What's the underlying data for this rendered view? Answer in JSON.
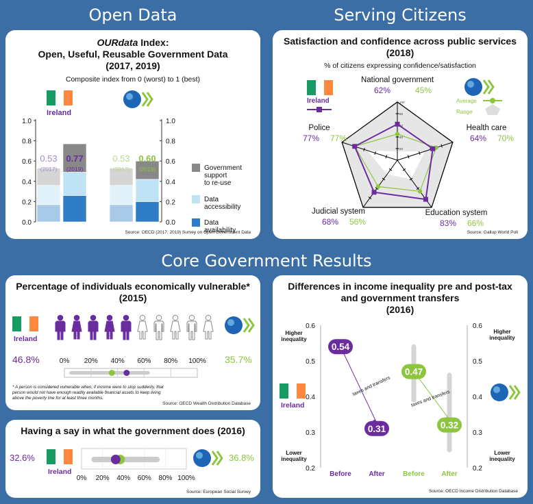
{
  "sections": {
    "open_data": "Open Data",
    "serving_citizens": "Serving Citizens",
    "core_gov": "Core Government Results"
  },
  "colors": {
    "background": "#3a6ea5",
    "purple": "#6a2c9f",
    "green": "#8cc63f",
    "flag_green": "#169b62",
    "flag_white": "#ffffff",
    "flag_orange": "#ff883e",
    "gray_dark": "#888888",
    "light_blue": "#bfe3f5",
    "blue": "#2f7cc7"
  },
  "country_label": "Ireland",
  "open_data": {
    "title_em": "OURdata",
    "title_rest": " Index:",
    "title_line2": "Open, Useful, Reusable Government Data",
    "title_line3": "(2017, 2019)",
    "subtitle": "Composite index from 0 (worst) to 1 (best)",
    "source": "Source: OECD (2017, 2019) Survey on Open Government Data"
  },
  "satisfaction": {
    "title_line1": "Satisfaction and confidence across public services",
    "title_line2": "(2018)",
    "subtitle": "% of citizens expressing confidence/satisfaction",
    "legend_average": "Average",
    "legend_range": "Range",
    "source": "Source: Gallup World Poll"
  },
  "vulnerable": {
    "title_line1": "Percentage of individuals economically vulnerable*",
    "title_line2": "(2015)",
    "note": "* A person is considered vulnerable when, if income were to stop suddenly, that person would not have enough readily available financial assets to keep living above the poverty line for at least three months.",
    "source": "Source: OECD Wealth Distribution Database"
  },
  "say": {
    "title": "Having a say in what the government does (2016)",
    "source": "Source: European Social Survey"
  },
  "inequality": {
    "title_line1": "Differences in income inequality pre and post-tax",
    "title_line2": "and government transfers",
    "title_line3": "(2016)",
    "higher": "Higher inequality",
    "lower": "Lower inequality",
    "arrow_label": "taxes and transfers",
    "source": "Source: OECD Income Distribution Database"
  },
  "chart_data": [
    {
      "type": "bar",
      "id": "ourdata",
      "stacked": true,
      "ylim": [
        0,
        1.0
      ],
      "yticks": [
        "0.0",
        "0.2",
        "0.4",
        "0.6",
        "0.8",
        "1.0"
      ],
      "categories": [
        "2017",
        "2019"
      ],
      "groups": [
        {
          "name": "Ireland",
          "totals_label": [
            "0.53",
            "0.77"
          ],
          "year_label": [
            "(2017)",
            "(2019)"
          ],
          "series": {
            "Data availability": [
              0.17,
              0.26
            ],
            "Data accessibility": [
              0.19,
              0.23
            ],
            "Government support to re-use": [
              0.17,
              0.28
            ]
          }
        },
        {
          "name": "OECD",
          "totals_label": [
            "0.53",
            "0.60"
          ],
          "year_label": [
            "(2017)",
            "(2019)"
          ],
          "series": {
            "Data availability": [
              0.17,
              0.2
            ],
            "Data accessibility": [
              0.19,
              0.22
            ],
            "Government support to re-use": [
              0.17,
              0.18
            ]
          }
        }
      ],
      "legend": [
        "Government support to re-use",
        "Data accessibility",
        "Data availability"
      ]
    },
    {
      "type": "radar",
      "id": "services",
      "axes": [
        "National government",
        "Health care",
        "Education system",
        "Judicial system",
        "Police"
      ],
      "rticks": [
        "20",
        "40",
        "60",
        "80",
        "100"
      ],
      "series": [
        {
          "name": "Ireland",
          "values": [
            62,
            64,
            83,
            68,
            77
          ],
          "labels": [
            "62%",
            "64%",
            "83%",
            "68%",
            "77%"
          ]
        },
        {
          "name": "Average",
          "values": [
            45,
            70,
            66,
            56,
            77
          ],
          "labels": [
            "45%",
            "70%",
            "66%",
            "56%",
            "77%"
          ]
        }
      ],
      "range": {
        "min": [
          15,
          50,
          40,
          30,
          55
        ],
        "max": [
          92,
          96,
          90,
          84,
          92
        ]
      }
    },
    {
      "type": "pictogram",
      "id": "vulnerable",
      "ireland": 46.8,
      "oecd": 35.7,
      "ireland_label": "46.8%",
      "oecd_label": "35.7%",
      "ticks": [
        "0%",
        "20%",
        "40%",
        "60%",
        "80%",
        "100%"
      ],
      "range": [
        5,
        63
      ],
      "icons_total": 10,
      "icons_filled": 5
    },
    {
      "type": "dot",
      "id": "say",
      "ireland": 32.6,
      "oecd": 36.8,
      "ireland_label": "32.6%",
      "oecd_label": "36.8%",
      "ticks": [
        "0%",
        "20%",
        "40%",
        "60%",
        "80%",
        "100%"
      ],
      "range": [
        12,
        72
      ]
    },
    {
      "type": "slope",
      "id": "inequality",
      "ylim": [
        0.2,
        0.6
      ],
      "yticks": [
        "0.2",
        "0.3",
        "0.4",
        "0.5",
        "0.6"
      ],
      "categories": [
        "Before",
        "After",
        "Before",
        "After"
      ],
      "ireland": {
        "before": 0.54,
        "after": 0.31,
        "before_label": "0.54",
        "after_label": "0.31"
      },
      "oecd": {
        "before": 0.47,
        "after": 0.32,
        "before_label": "0.47",
        "after_label": "0.32"
      },
      "oecd_before_range": [
        0.39,
        0.54
      ],
      "oecd_after_range": [
        0.25,
        0.46
      ]
    }
  ]
}
